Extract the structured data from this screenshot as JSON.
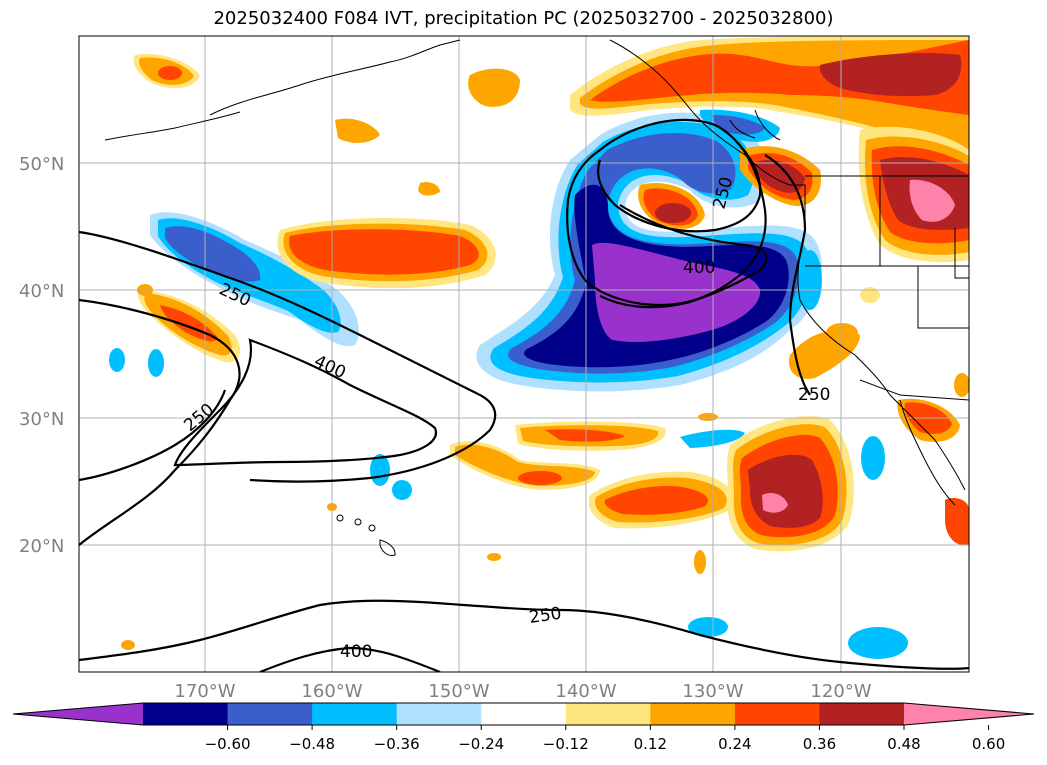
{
  "title": "2025032400 F084 IVT, precipitation PC (2025032700 - 2025032800)",
  "lat_labels": [
    "50°N",
    "40°N",
    "30°N",
    "20°N"
  ],
  "lon_labels": [
    "170°W",
    "160°W",
    "150°W",
    "140°W",
    "130°W",
    "120°W"
  ],
  "ivt_contour_labels": [
    "250",
    "250",
    "250",
    "250",
    "400",
    "400",
    "250",
    "400"
  ],
  "colorbar": {
    "ticks": [
      "−0.60",
      "−0.48",
      "−0.36",
      "−0.24",
      "−0.12",
      "0.12",
      "0.24",
      "0.36",
      "0.48",
      "0.60"
    ],
    "colors": [
      "#9932cc",
      "#00008b",
      "#3a5fcd",
      "#00bfff",
      "#b0e0ff",
      "#ffffff",
      "#ffe680",
      "#ffa500",
      "#ff4500",
      "#b22222",
      "#ff82ab"
    ]
  }
}
